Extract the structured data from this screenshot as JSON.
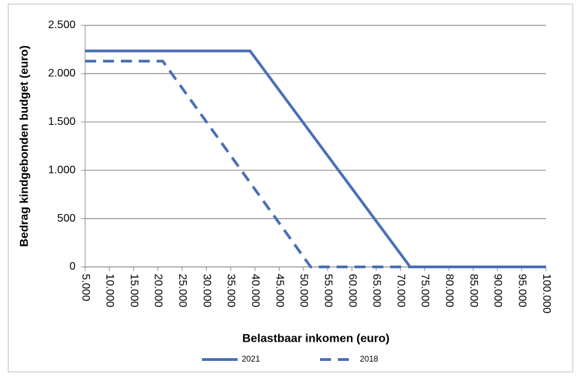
{
  "chart_data": {
    "type": "line",
    "xlabel": "Belastbaar inkomen (euro)",
    "ylabel": "Bedrag kindgebonden budget (euro)",
    "series": [
      {
        "name": "2021",
        "color": "#4a6fb5",
        "style": "solid",
        "x": [
          5000,
          39000,
          72000,
          100000
        ],
        "values": [
          2235,
          2235,
          0,
          0
        ]
      },
      {
        "name": "2018",
        "color": "#4a6fb5",
        "style": "dashed",
        "x": [
          5000,
          21000,
          51500,
          100000
        ],
        "values": [
          2130,
          2130,
          0,
          0
        ]
      }
    ],
    "xlim": [
      5000,
      100000
    ],
    "xticks": [
      {
        "value": 5000,
        "label": "5.000"
      },
      {
        "value": 10000,
        "label": "10.000"
      },
      {
        "value": 15000,
        "label": "15.000"
      },
      {
        "value": 20000,
        "label": "20.000"
      },
      {
        "value": 25000,
        "label": "25.000"
      },
      {
        "value": 30000,
        "label": "30.000"
      },
      {
        "value": 35000,
        "label": "35.000"
      },
      {
        "value": 40000,
        "label": "40.000"
      },
      {
        "value": 45000,
        "label": "45.000"
      },
      {
        "value": 50000,
        "label": "50.000"
      },
      {
        "value": 55000,
        "label": "55.000"
      },
      {
        "value": 60000,
        "label": "60.000"
      },
      {
        "value": 65000,
        "label": "65.000"
      },
      {
        "value": 70000,
        "label": "70.000"
      },
      {
        "value": 75000,
        "label": "75.000"
      },
      {
        "value": 80000,
        "label": "80.000"
      },
      {
        "value": 85000,
        "label": "85.000"
      },
      {
        "value": 90000,
        "label": "90.000"
      },
      {
        "value": 95000,
        "label": "95.000"
      },
      {
        "value": 100000,
        "label": "100.000"
      }
    ],
    "ylim": [
      0,
      2500
    ],
    "yticks": [
      0,
      {
        "value": 500,
        "label": "500"
      },
      {
        "value": 1000,
        "label": "1.000"
      },
      {
        "value": 1500,
        "label": "1.500"
      },
      {
        "value": 2000,
        "label": "2.000"
      },
      {
        "value": 2500,
        "label": "2.500"
      }
    ],
    "grid": true,
    "legend": "bottom"
  }
}
